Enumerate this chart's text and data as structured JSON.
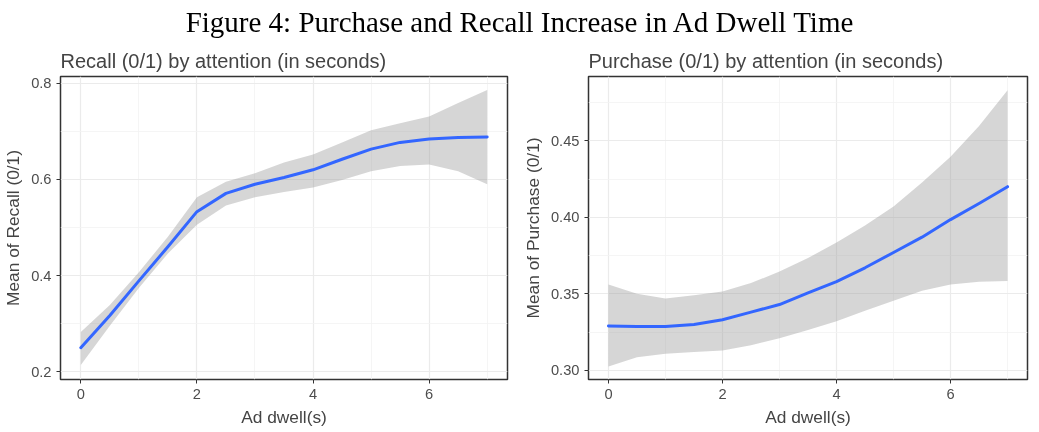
{
  "chart_data": [
    {
      "type": "line",
      "title": "Figure 4: Purchase and Recall Increase in Ad Dwell Time",
      "subtitle": "Recall (0/1) by attention (in seconds)",
      "xlabel": "Ad dwell(s)",
      "ylabel": "Mean of Recall (0/1)",
      "x": [
        0,
        0.5,
        1,
        1.5,
        2,
        2.5,
        3,
        3.5,
        4,
        4.5,
        5,
        5.5,
        6,
        6.5,
        7
      ],
      "series": [
        {
          "color": "#3366ff",
          "values": [
            0.25,
            0.317,
            0.389,
            0.46,
            0.533,
            0.571,
            0.59,
            0.604,
            0.62,
            0.642,
            0.663,
            0.677,
            0.684,
            0.687,
            0.688
          ],
          "lower": [
            0.214,
            0.296,
            0.374,
            0.446,
            0.506,
            0.546,
            0.563,
            0.574,
            0.583,
            0.599,
            0.617,
            0.628,
            0.631,
            0.617,
            0.59
          ],
          "upper": [
            0.283,
            0.339,
            0.407,
            0.481,
            0.563,
            0.595,
            0.613,
            0.635,
            0.652,
            0.677,
            0.702,
            0.717,
            0.731,
            0.759,
            0.786
          ]
        }
      ],
      "xlim": [
        -0.35,
        7.35
      ],
      "ylim": [
        0.184,
        0.814
      ],
      "xticks": [
        0,
        2,
        4,
        6
      ],
      "yticks": [
        0.2,
        0.4,
        0.6,
        0.8
      ],
      "grid": true
    },
    {
      "type": "line",
      "subtitle": "Purchase (0/1) by attention (in seconds)",
      "xlabel": "Ad dwell(s)",
      "ylabel": "Mean of Purchase (0/1)",
      "x": [
        0,
        0.5,
        1,
        1.5,
        2,
        2.5,
        3,
        3.5,
        4,
        4.5,
        5,
        5.5,
        6,
        6.5,
        7
      ],
      "series": [
        {
          "color": "#3366ff",
          "values": [
            0.329,
            0.3287,
            0.3287,
            0.33,
            0.333,
            0.338,
            0.343,
            0.3506,
            0.358,
            0.367,
            0.377,
            0.387,
            0.3985,
            0.409,
            0.42
          ],
          "lower": [
            0.3025,
            0.3085,
            0.3108,
            0.312,
            0.313,
            0.3164,
            0.321,
            0.3264,
            0.332,
            0.339,
            0.3455,
            0.352,
            0.356,
            0.3578,
            0.3584
          ],
          "upper": [
            0.356,
            0.35,
            0.347,
            0.349,
            0.3515,
            0.357,
            0.3645,
            0.3734,
            0.3835,
            0.3947,
            0.407,
            0.4227,
            0.4395,
            0.4596,
            0.483
          ]
        }
      ],
      "xlim": [
        -0.35,
        7.35
      ],
      "ylim": [
        0.294,
        0.492
      ],
      "xticks": [
        0,
        2,
        4,
        6
      ],
      "yticks": [
        {
          "value": 0.3,
          "label": "0.30"
        },
        {
          "value": 0.35,
          "label": "0.35"
        },
        {
          "value": 0.4,
          "label": "0.40"
        },
        {
          "value": 0.45,
          "label": "0.45"
        }
      ],
      "grid": true
    }
  ]
}
